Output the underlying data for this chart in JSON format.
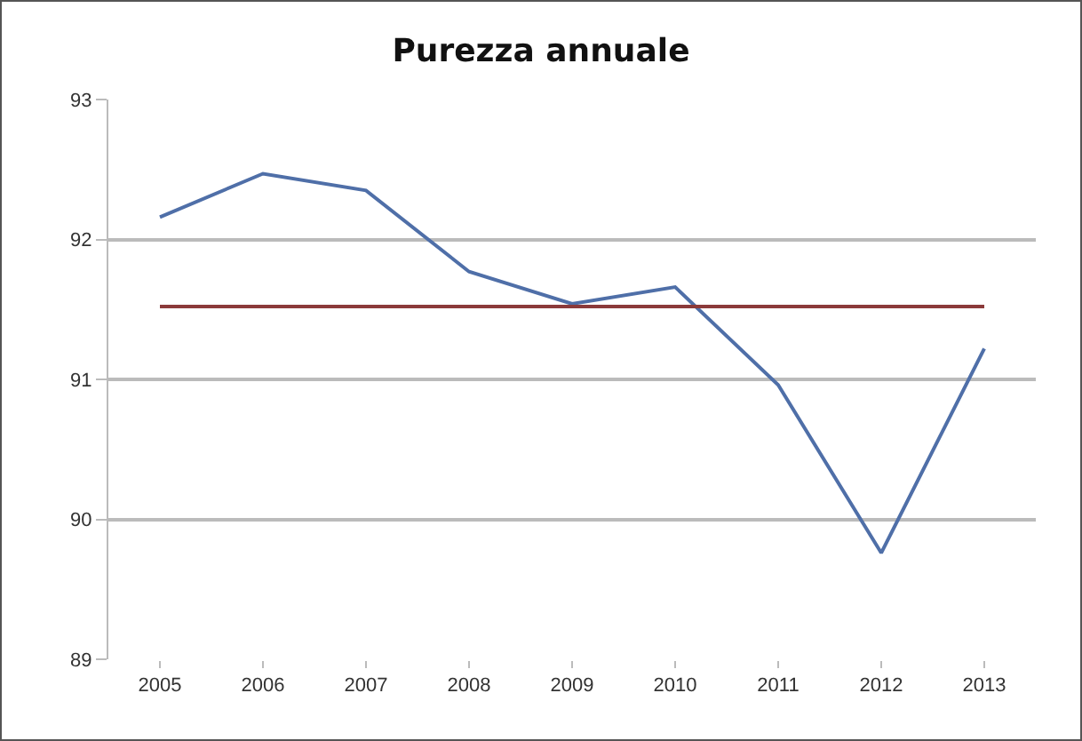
{
  "chart_data": {
    "type": "line",
    "title": "Purezza annuale",
    "categories": [
      "2005",
      "2006",
      "2007",
      "2008",
      "2009",
      "2010",
      "2011",
      "2012",
      "2013"
    ],
    "series": [
      {
        "color": "#4f6fa8",
        "values": [
          92.16,
          92.47,
          92.35,
          91.77,
          91.54,
          91.66,
          90.96,
          89.76,
          91.22
        ]
      }
    ],
    "ref_lines": [
      {
        "axis": "y",
        "value": 91.52,
        "color": "#8b3a3a"
      }
    ],
    "ylim": [
      89,
      93
    ],
    "yticks": [
      89,
      90,
      91,
      92,
      93
    ],
    "grid": "y",
    "marker": "none",
    "line_style": "solid"
  }
}
